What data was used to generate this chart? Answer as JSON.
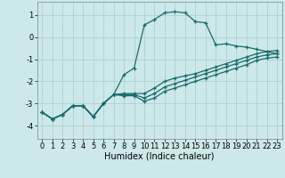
{
  "background_color": "#cce8e8",
  "grid_color": "#aacccc",
  "line_color": "#1a6b6b",
  "line_width": 0.9,
  "marker": "+",
  "marker_size": 3.5,
  "marker_edge_width": 0.9,
  "xlabel": "Humidex (Indice chaleur)",
  "xlabel_fontsize": 7,
  "tick_fontsize": 6,
  "xlim": [
    -0.5,
    23.5
  ],
  "ylim": [
    -4.6,
    1.6
  ],
  "yticks": [
    -4,
    -3,
    -2,
    -1,
    0,
    1
  ],
  "xticks": [
    0,
    1,
    2,
    3,
    4,
    5,
    6,
    7,
    8,
    9,
    10,
    11,
    12,
    13,
    14,
    15,
    16,
    17,
    18,
    19,
    20,
    21,
    22,
    23
  ],
  "series": [
    [
      -3.4,
      -3.7,
      -3.5,
      -3.1,
      -3.1,
      -3.6,
      -3.0,
      -2.6,
      -1.7,
      -1.4,
      0.55,
      0.8,
      1.1,
      1.15,
      1.1,
      0.7,
      0.65,
      -0.35,
      -0.3,
      -0.4,
      -0.45,
      -0.55,
      -0.65,
      -0.75
    ],
    [
      -3.4,
      -3.7,
      -3.5,
      -3.1,
      -3.1,
      -3.6,
      -3.0,
      -2.6,
      -2.55,
      -2.55,
      -2.55,
      -2.3,
      -2.0,
      -1.85,
      -1.75,
      -1.65,
      -1.5,
      -1.35,
      -1.2,
      -1.05,
      -0.9,
      -0.75,
      -0.65,
      -0.6
    ],
    [
      -3.4,
      -3.7,
      -3.5,
      -3.1,
      -3.1,
      -3.6,
      -3.0,
      -2.6,
      -2.6,
      -2.6,
      -2.75,
      -2.55,
      -2.25,
      -2.1,
      -1.95,
      -1.8,
      -1.65,
      -1.5,
      -1.35,
      -1.2,
      -1.05,
      -0.9,
      -0.8,
      -0.75
    ],
    [
      -3.4,
      -3.7,
      -3.5,
      -3.1,
      -3.1,
      -3.6,
      -3.0,
      -2.6,
      -2.65,
      -2.65,
      -2.9,
      -2.75,
      -2.45,
      -2.3,
      -2.15,
      -2.0,
      -1.85,
      -1.7,
      -1.55,
      -1.4,
      -1.25,
      -1.05,
      -0.95,
      -0.9
    ]
  ]
}
